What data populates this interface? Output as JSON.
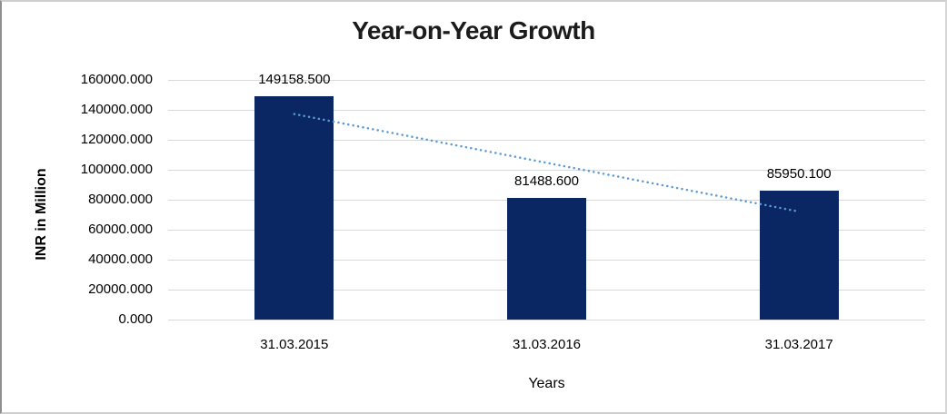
{
  "chart_data": {
    "type": "bar",
    "title": "Year-on-Year Growth",
    "xlabel": "Years",
    "ylabel": "INR in Million",
    "categories": [
      "31.03.2015",
      "31.03.2016",
      "31.03.2017"
    ],
    "values": [
      149158.5,
      81488.6,
      85950.1
    ],
    "data_labels": [
      "149158.500",
      "81488.600",
      "85950.100"
    ],
    "ylim": [
      0,
      160000
    ],
    "ytick_step": 20000,
    "ytick_labels": [
      "160000.000",
      "140000.000",
      "120000.000",
      "100000.000",
      "80000.000",
      "60000.000",
      "40000.000",
      "20000.000",
      "0.000"
    ],
    "grid": "horizontal-only",
    "legend": "none",
    "trendline": {
      "type": "linear",
      "style": "dotted",
      "start_value": 137200,
      "end_value": 72100
    }
  },
  "colors": {
    "bar": "#0A2663",
    "trendline": "#5B9BD5",
    "gridline": "#D9D9D9",
    "title_text": "#1b1b1b",
    "axis_text": "#000000",
    "background": "#FFFFFF"
  }
}
